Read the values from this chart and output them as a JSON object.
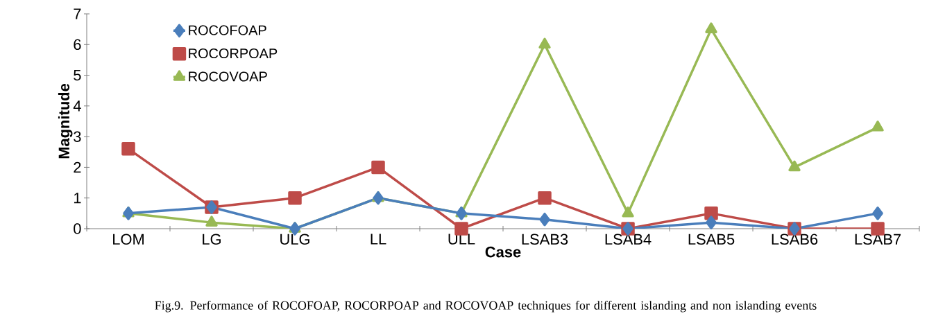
{
  "chart_data": {
    "type": "line",
    "xlabel": "Case",
    "ylabel": "Magnitude",
    "categories": [
      "LOM",
      "LG",
      "ULG",
      "LL",
      "ULL",
      "LSAB3",
      "LSAB4",
      "LSAB5",
      "LSAB6",
      "LSAB7"
    ],
    "series": [
      {
        "name": "ROCOFOAP",
        "color": "#4a7ebb",
        "marker": "diamond",
        "values": [
          0.5,
          0.7,
          0,
          1,
          0.5,
          0.3,
          0,
          0.2,
          0,
          0.5
        ]
      },
      {
        "name": "ROCORPOAP",
        "color": "#be4b48",
        "marker": "square",
        "values": [
          2.6,
          0.7,
          1,
          2,
          0,
          1,
          0,
          0.5,
          0,
          0
        ]
      },
      {
        "name": "ROCOVOAP",
        "color": "#98b954",
        "marker": "triangle",
        "values": [
          0.5,
          0.2,
          0,
          1,
          0.5,
          6,
          0.5,
          6.5,
          2,
          3.3
        ]
      }
    ],
    "ylim": [
      0,
      7
    ],
    "yticks": [
      0,
      1,
      2,
      3,
      4,
      5,
      6,
      7
    ],
    "grid": false,
    "legend": "top left",
    "annotations": [
      "Fig.9. Performance of ROCOFOAP, ROCORPOAP and ROCOVOAP techniques for different islanding and non islanding events"
    ]
  }
}
